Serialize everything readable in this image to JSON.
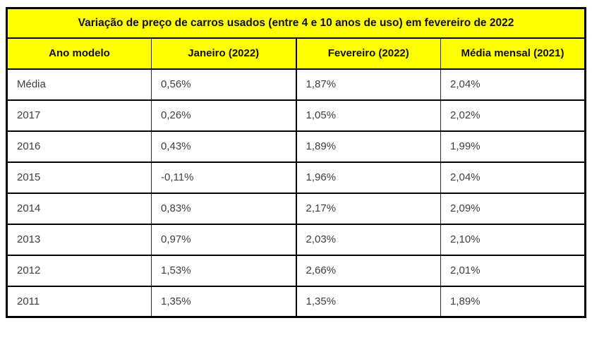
{
  "chart_data": {
    "type": "table",
    "title": "Variação de preço de carros usados (entre 4 e 10 anos de uso) em fevereiro de 2022",
    "columns": [
      "Ano modelo",
      "Janeiro (2022)",
      "Fevereiro (2022)",
      "Média mensal (2021)"
    ],
    "rows": [
      [
        "Média",
        "0,56%",
        "1,87%",
        "2,04%"
      ],
      [
        "2017",
        "0,26%",
        "1,05%",
        "2,02%"
      ],
      [
        "2016",
        "0,43%",
        "1,89%",
        "1,99%"
      ],
      [
        "2015",
        "-0,11%",
        "1,96%",
        "2,04%"
      ],
      [
        "2014",
        "0,83%",
        "2,17%",
        "2,09%"
      ],
      [
        "2013",
        "0,97%",
        "2,03%",
        "2,10%"
      ],
      [
        "2012",
        "1,53%",
        "2,66%",
        "2,01%"
      ],
      [
        "2011",
        "1,35%",
        "1,35%",
        "1,89%"
      ]
    ],
    "layout": {
      "header_background": "#FFFF00",
      "border_color": "#000000",
      "header_text_color": "#111111",
      "cell_text_color": "#3C4043",
      "number_format": "percent-comma-decimal"
    }
  },
  "table": {
    "title": "Variação de preço de carros usados (entre 4 e 10 anos de uso) em fevereiro de 2022",
    "columns": [
      "Ano modelo",
      "Janeiro (2022)",
      "Fevereiro (2022)",
      "Média mensal (2021)"
    ],
    "rows": [
      [
        "Média",
        "0,56%",
        "1,87%",
        "2,04%"
      ],
      [
        "2017",
        "0,26%",
        "1,05%",
        "2,02%"
      ],
      [
        "2016",
        "0,43%",
        "1,89%",
        "1,99%"
      ],
      [
        "2015",
        "-0,11%",
        "1,96%",
        "2,04%"
      ],
      [
        "2014",
        "0,83%",
        "2,17%",
        "2,09%"
      ],
      [
        "2013",
        "0,97%",
        "2,03%",
        "2,10%"
      ],
      [
        "2012",
        "1,53%",
        "2,66%",
        "2,01%"
      ],
      [
        "2011",
        "1,35%",
        "1,35%",
        "1,89%"
      ]
    ]
  }
}
